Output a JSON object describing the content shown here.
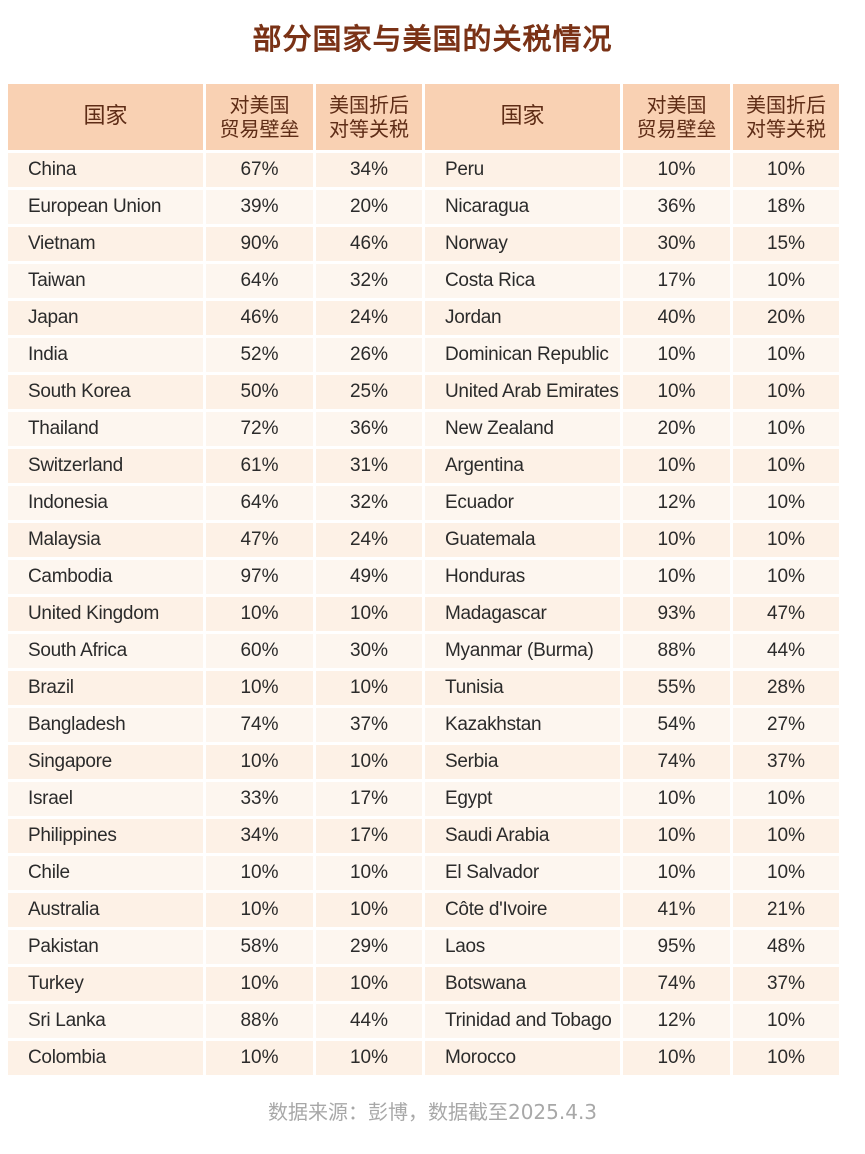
{
  "title": "部分国家与美国的关税情况",
  "headers": {
    "country": "国家",
    "barrier": "对美国\n贸易壁垒",
    "tariff": "美国折后\n对等关税"
  },
  "rows_left": [
    {
      "country": "China",
      "barrier": "67%",
      "tariff": "34%"
    },
    {
      "country": "European Union",
      "barrier": "39%",
      "tariff": "20%"
    },
    {
      "country": "Vietnam",
      "barrier": "90%",
      "tariff": "46%"
    },
    {
      "country": "Taiwan",
      "barrier": "64%",
      "tariff": "32%"
    },
    {
      "country": "Japan",
      "barrier": "46%",
      "tariff": "24%"
    },
    {
      "country": "India",
      "barrier": "52%",
      "tariff": "26%"
    },
    {
      "country": "South Korea",
      "barrier": "50%",
      "tariff": "25%"
    },
    {
      "country": "Thailand",
      "barrier": "72%",
      "tariff": "36%"
    },
    {
      "country": "Switzerland",
      "barrier": "61%",
      "tariff": "31%"
    },
    {
      "country": "Indonesia",
      "barrier": "64%",
      "tariff": "32%"
    },
    {
      "country": "Malaysia",
      "barrier": "47%",
      "tariff": "24%"
    },
    {
      "country": "Cambodia",
      "barrier": "97%",
      "tariff": "49%"
    },
    {
      "country": "United Kingdom",
      "barrier": "10%",
      "tariff": "10%"
    },
    {
      "country": "South Africa",
      "barrier": "60%",
      "tariff": "30%"
    },
    {
      "country": "Brazil",
      "barrier": "10%",
      "tariff": "10%"
    },
    {
      "country": "Bangladesh",
      "barrier": "74%",
      "tariff": "37%"
    },
    {
      "country": "Singapore",
      "barrier": "10%",
      "tariff": "10%"
    },
    {
      "country": "Israel",
      "barrier": "33%",
      "tariff": "17%"
    },
    {
      "country": "Philippines",
      "barrier": "34%",
      "tariff": "17%"
    },
    {
      "country": "Chile",
      "barrier": "10%",
      "tariff": "10%"
    },
    {
      "country": "Australia",
      "barrier": "10%",
      "tariff": "10%"
    },
    {
      "country": "Pakistan",
      "barrier": "58%",
      "tariff": "29%"
    },
    {
      "country": "Turkey",
      "barrier": "10%",
      "tariff": "10%"
    },
    {
      "country": "Sri Lanka",
      "barrier": "88%",
      "tariff": "44%"
    },
    {
      "country": "Colombia",
      "barrier": "10%",
      "tariff": "10%"
    }
  ],
  "rows_right": [
    {
      "country": "Peru",
      "barrier": "10%",
      "tariff": "10%"
    },
    {
      "country": "Nicaragua",
      "barrier": "36%",
      "tariff": "18%"
    },
    {
      "country": "Norway",
      "barrier": "30%",
      "tariff": "15%"
    },
    {
      "country": "Costa Rica",
      "barrier": "17%",
      "tariff": "10%"
    },
    {
      "country": "Jordan",
      "barrier": "40%",
      "tariff": "20%"
    },
    {
      "country": "Dominican Republic",
      "barrier": "10%",
      "tariff": "10%"
    },
    {
      "country": "United Arab Emirates",
      "barrier": "10%",
      "tariff": "10%"
    },
    {
      "country": "New Zealand",
      "barrier": "20%",
      "tariff": "10%"
    },
    {
      "country": "Argentina",
      "barrier": "10%",
      "tariff": "10%"
    },
    {
      "country": "Ecuador",
      "barrier": "12%",
      "tariff": "10%"
    },
    {
      "country": "Guatemala",
      "barrier": "10%",
      "tariff": "10%"
    },
    {
      "country": "Honduras",
      "barrier": "10%",
      "tariff": "10%"
    },
    {
      "country": "Madagascar",
      "barrier": "93%",
      "tariff": "47%"
    },
    {
      "country": "Myanmar (Burma)",
      "barrier": "88%",
      "tariff": "44%"
    },
    {
      "country": "Tunisia",
      "barrier": "55%",
      "tariff": "28%"
    },
    {
      "country": "Kazakhstan",
      "barrier": "54%",
      "tariff": "27%"
    },
    {
      "country": "Serbia",
      "barrier": "74%",
      "tariff": "37%"
    },
    {
      "country": "Egypt",
      "barrier": "10%",
      "tariff": "10%"
    },
    {
      "country": "Saudi Arabia",
      "barrier": "10%",
      "tariff": "10%"
    },
    {
      "country": "El Salvador",
      "barrier": "10%",
      "tariff": "10%"
    },
    {
      "country": "Côte d'Ivoire",
      "barrier": "41%",
      "tariff": "21%"
    },
    {
      "country": "Laos",
      "barrier": "95%",
      "tariff": "48%"
    },
    {
      "country": "Botswana",
      "barrier": "74%",
      "tariff": "37%"
    },
    {
      "country": "Trinidad and Tobago",
      "barrier": "12%",
      "tariff": "10%"
    },
    {
      "country": "Morocco",
      "barrier": "10%",
      "tariff": "10%"
    }
  ],
  "source": "数据来源：彭博，数据截至2025.4.3",
  "colors": {
    "title": "#7a3216",
    "header_bg": "#f9d1b3",
    "header_text": "#5e2c16",
    "row_bg": "#fdf1e6",
    "source_text": "#a8a8a8"
  }
}
